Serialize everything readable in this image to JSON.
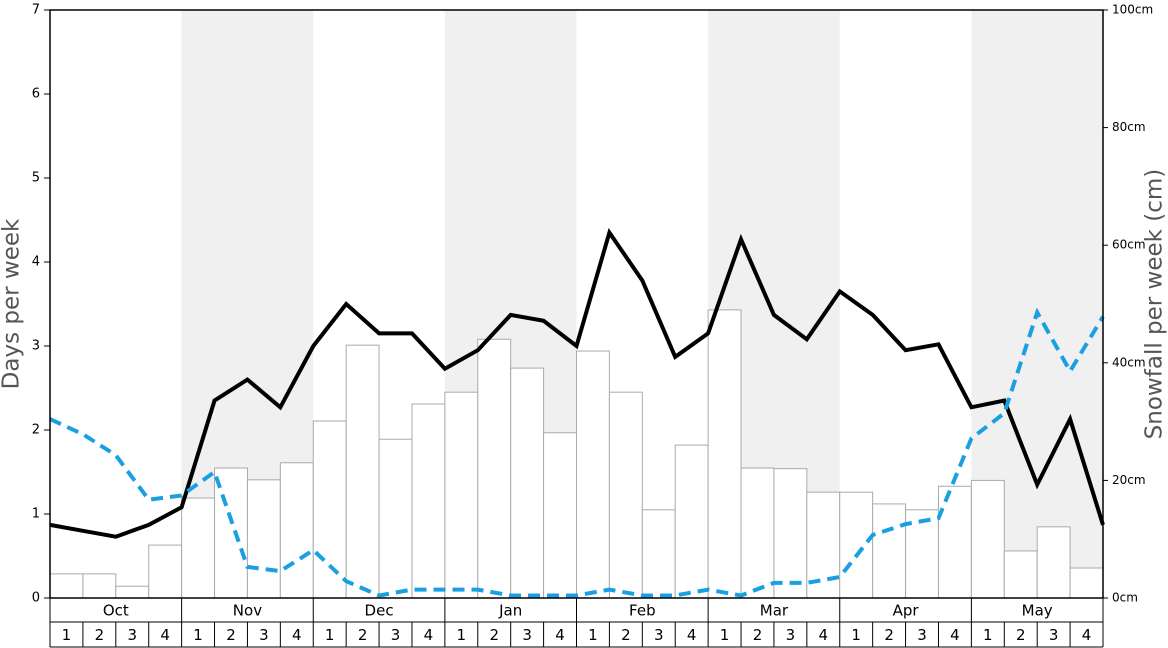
{
  "chart_data": {
    "type": "bar",
    "ylabel": "Days per week",
    "y2label": "Snowfall per week (cm)",
    "months": [
      "Oct",
      "Nov",
      "Dec",
      "Jan",
      "Feb",
      "Mar",
      "Apr",
      "May"
    ],
    "categories": [
      "1",
      "2",
      "3",
      "4",
      "1",
      "2",
      "3",
      "4",
      "1",
      "2",
      "3",
      "4",
      "1",
      "2",
      "3",
      "4",
      "1",
      "2",
      "3",
      "4",
      "1",
      "2",
      "3",
      "4",
      "1",
      "2",
      "3",
      "4",
      "1",
      "2",
      "3",
      "4"
    ],
    "ylim": [
      0,
      7
    ],
    "yticks": [
      0,
      1,
      2,
      3,
      4,
      5,
      6,
      7
    ],
    "y2lim": [
      0,
      100
    ],
    "y2ticks": [
      {
        "value": 0,
        "label": "0cm"
      },
      {
        "value": 20,
        "label": "20cm"
      },
      {
        "value": 40,
        "label": "40cm"
      },
      {
        "value": 60,
        "label": "60cm"
      },
      {
        "value": 80,
        "label": "80cm"
      },
      {
        "value": 100,
        "label": "100cm"
      }
    ],
    "bar_series": {
      "axis": "y2",
      "color": "#ffffff",
      "edgecolor": "#aaaaaa",
      "values": [
        4.1,
        4.1,
        2.0,
        9.0,
        17.0,
        22.1,
        20.1,
        23.0,
        30.1,
        43.0,
        27.0,
        33.0,
        35.0,
        44.0,
        39.1,
        28.1,
        42.0,
        35.0,
        15.0,
        26.0,
        49.0,
        22.1,
        22.0,
        18.0,
        18.0,
        16.0,
        15.0,
        19.0,
        20.0,
        8.0,
        12.1,
        5.1
      ]
    },
    "line_series": [
      {
        "type": "line",
        "color": "#000000",
        "dashed": false,
        "values": [
          0.87,
          0.8,
          0.73,
          0.87,
          1.08,
          2.35,
          2.6,
          2.27,
          3.0,
          3.5,
          3.15,
          3.15,
          2.73,
          2.95,
          3.37,
          3.3,
          3.0,
          4.35,
          3.78,
          2.87,
          3.15,
          4.27,
          3.37,
          3.08,
          3.65,
          3.37,
          2.95,
          3.02,
          2.27,
          2.35,
          1.35,
          2.13,
          0.87
        ]
      },
      {
        "type": "line",
        "color": "#1a9fe2",
        "dashed": true,
        "values": [
          2.13,
          1.95,
          1.7,
          1.17,
          1.22,
          1.5,
          0.37,
          0.32,
          0.57,
          0.2,
          0.03,
          0.1,
          0.1,
          0.1,
          0.03,
          0.03,
          0.03,
          0.1,
          0.03,
          0.03,
          0.1,
          0.03,
          0.18,
          0.18,
          0.25,
          0.75,
          0.88,
          0.95,
          1.9,
          2.2,
          3.4,
          2.7,
          3.35
        ]
      }
    ],
    "shade_color": "#f0f0f0"
  }
}
